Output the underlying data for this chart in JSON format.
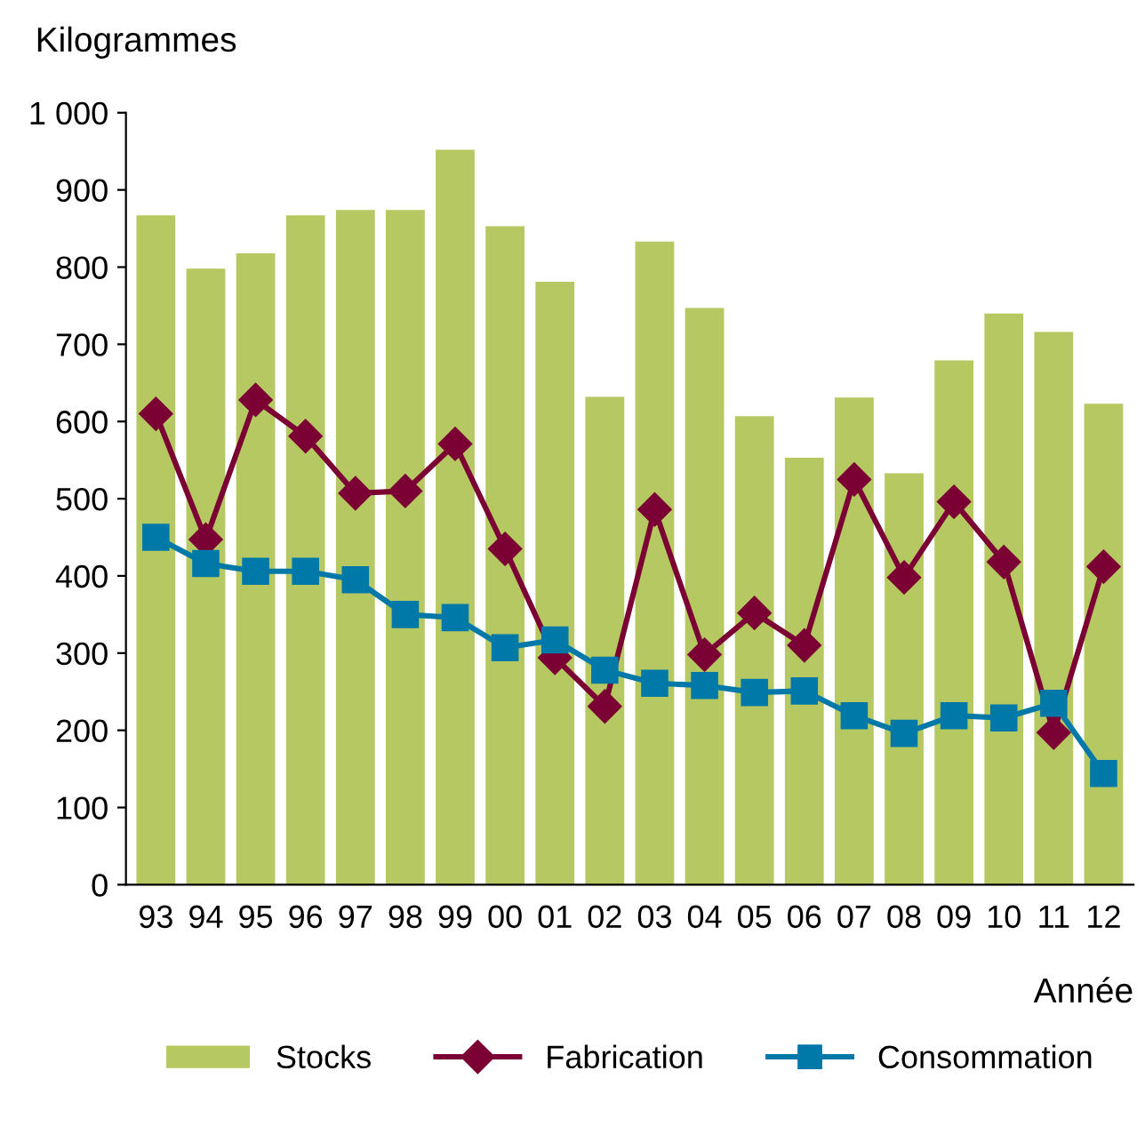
{
  "chart_data": {
    "type": "bar",
    "ylabel": "Kilogrammes",
    "xlabel": "Année",
    "categories": [
      "93",
      "94",
      "95",
      "96",
      "97",
      "98",
      "99",
      "00",
      "01",
      "02",
      "03",
      "04",
      "05",
      "06",
      "07",
      "08",
      "09",
      "10",
      "11",
      "12"
    ],
    "series": [
      {
        "name": "Stocks",
        "color": "#b5c862",
        "values": [
          867,
          798,
          818,
          867,
          874,
          874,
          952,
          853,
          781,
          632,
          833,
          747,
          607,
          553,
          631,
          533,
          679,
          740,
          716,
          623
        ]
      },
      {
        "name": "Fabrication",
        "type": "line",
        "color": "#7b0034",
        "marker": "diamond",
        "values": [
          610,
          447,
          628,
          581,
          507,
          510,
          571,
          435,
          294,
          231,
          486,
          298,
          352,
          310,
          525,
          398,
          496,
          418,
          197,
          412
        ]
      },
      {
        "name": "Consommation",
        "type": "line",
        "color": "#0079a8",
        "marker": "square",
        "values": [
          450,
          416,
          406,
          406,
          395,
          350,
          346,
          307,
          317,
          278,
          261,
          258,
          249,
          251,
          219,
          196,
          219,
          216,
          235,
          144
        ]
      }
    ],
    "ylim": [
      0,
      1000
    ],
    "yticks": [
      0,
      100,
      200,
      300,
      400,
      500,
      600,
      700,
      800,
      900,
      {
        "value": 1000,
        "label": "1 000"
      }
    ],
    "grid": false,
    "legend": "bottom"
  }
}
